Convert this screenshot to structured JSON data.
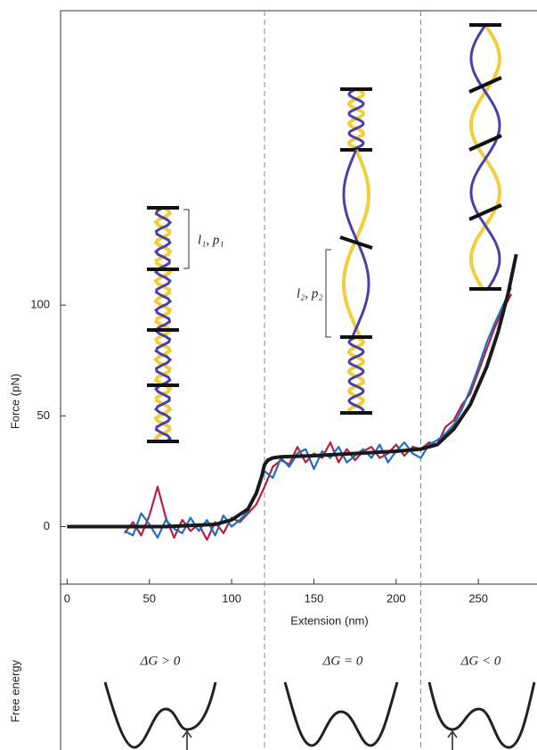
{
  "chart_data": {
    "type": "line",
    "xlabel": "Extension (nm)",
    "ylabel": "Force (pN)",
    "xlim": [
      -4,
      284
    ],
    "ylim": [
      -26,
      233
    ],
    "xticks": [
      0,
      50,
      100,
      150,
      200,
      250
    ],
    "yticks": [
      0,
      50,
      100
    ],
    "boundaries": [
      120,
      215
    ],
    "series": [
      {
        "color": "#b5213f",
        "x": [
          35,
          40,
          45,
          50,
          55,
          60,
          65,
          70,
          75,
          80,
          85,
          90,
          95,
          100,
          105,
          110,
          115,
          120,
          125,
          130,
          135,
          140,
          145,
          150,
          155,
          160,
          165,
          170,
          175,
          180,
          185,
          190,
          195,
          200,
          205,
          210,
          215,
          220,
          225,
          230,
          235,
          240,
          245,
          250,
          255,
          260,
          265,
          270
        ],
        "values": [
          -3,
          2,
          -4,
          5,
          18,
          4,
          -5,
          3,
          -2,
          1,
          -6,
          2,
          -3,
          4,
          2,
          6,
          10,
          18,
          27,
          30,
          28,
          36,
          29,
          33,
          31,
          38,
          29,
          35,
          30,
          34,
          36,
          31,
          33,
          37,
          32,
          36,
          35,
          38,
          37,
          45,
          48,
          55,
          60,
          70,
          80,
          90,
          98,
          105
        ]
      },
      {
        "color": "#1f6fbf",
        "x": [
          35,
          40,
          45,
          50,
          55,
          60,
          65,
          70,
          75,
          80,
          85,
          90,
          95,
          100,
          105,
          110,
          115,
          120,
          125,
          130,
          135,
          140,
          145,
          150,
          155,
          160,
          165,
          170,
          175,
          180,
          185,
          190,
          195,
          200,
          205,
          210,
          215,
          220,
          225,
          230,
          235,
          240,
          245,
          250,
          255,
          260,
          265,
          270
        ],
        "values": [
          -2,
          -4,
          6,
          1,
          -5,
          3,
          -1,
          -3,
          4,
          -2,
          3,
          -4,
          5,
          0,
          3,
          7,
          15,
          25,
          22,
          31,
          27,
          33,
          35,
          26,
          34,
          31,
          36,
          29,
          32,
          35,
          31,
          37,
          29,
          34,
          38,
          33,
          31,
          37,
          39,
          42,
          46,
          53,
          62,
          72,
          83,
          92,
          100,
          108
        ]
      },
      {
        "color": "#1a1a1a",
        "x": [
          0,
          30,
          60,
          90,
          100,
          110,
          115,
          118,
          120,
          122,
          125,
          130,
          150,
          175,
          200,
          215,
          225,
          235,
          245,
          255,
          262,
          268,
          273
        ],
        "values": [
          0,
          0,
          0,
          1,
          3,
          8,
          15,
          22,
          28,
          30,
          31,
          31.5,
          32,
          33,
          34,
          35,
          37,
          44,
          55,
          72,
          88,
          105,
          123
        ]
      }
    ],
    "annotations": [
      "l₁, p₁",
      "l₂, p₂"
    ],
    "energy_panel": {
      "ylabel": "Free energy",
      "labels": [
        "ΔG > 0",
        "ΔG = 0",
        "ΔG < 0"
      ]
    }
  }
}
